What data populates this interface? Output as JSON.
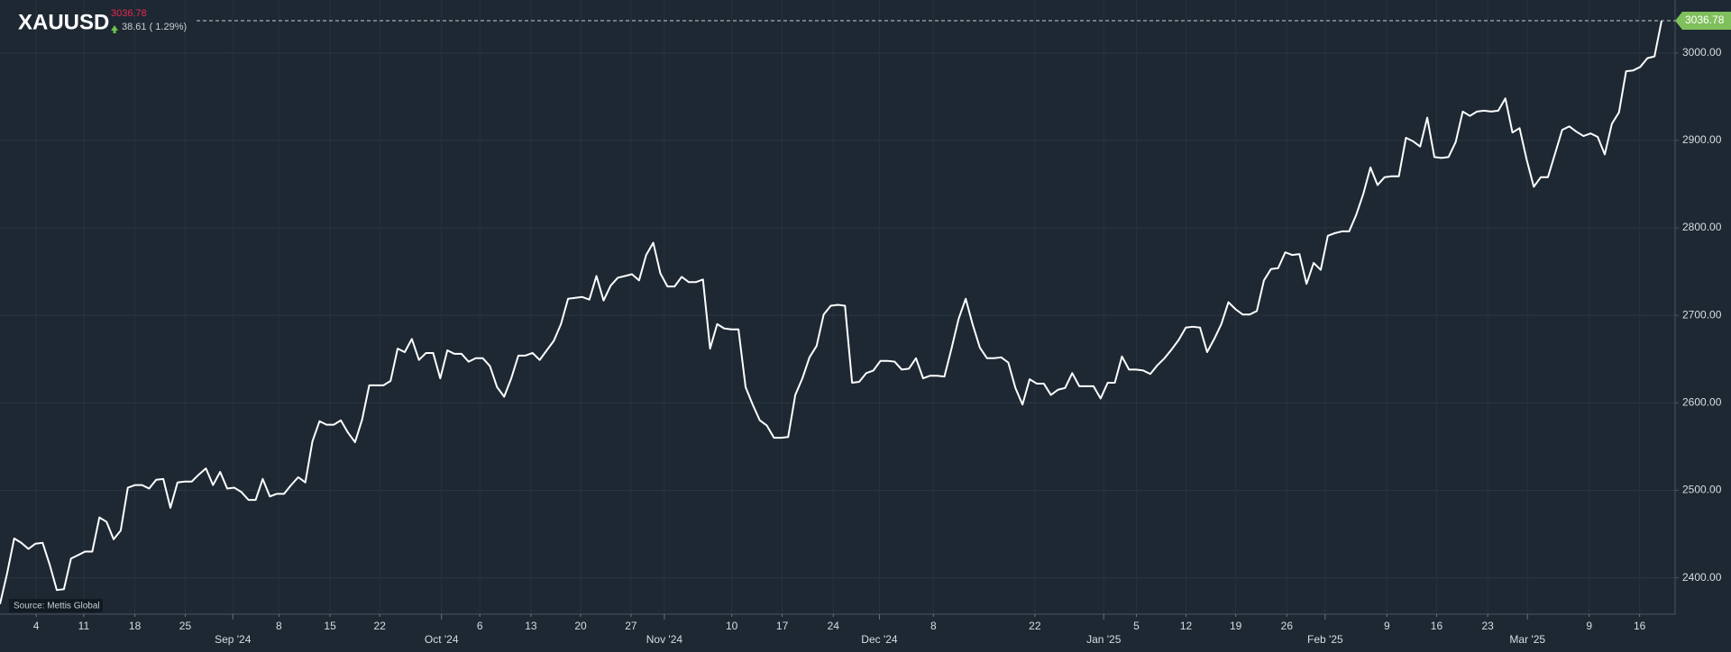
{
  "chart_data": {
    "type": "line",
    "title": "XAUUSD",
    "last_price": "3036.78",
    "change": "38.61 ( 1.29%)",
    "source": "Source: Mettis Global",
    "series": [
      {
        "name": "XAUUSD",
        "color": "#ffffff",
        "values": [
          2370,
          2405,
          2445,
          2440,
          2433,
          2439,
          2440,
          2415,
          2386,
          2387,
          2422,
          2426,
          2430,
          2430,
          2469,
          2464,
          2444,
          2454,
          2503,
          2506,
          2506,
          2502,
          2512,
          2513,
          2480,
          2509,
          2510,
          2510,
          2518,
          2525,
          2506,
          2521,
          2502,
          2503,
          2498,
          2489,
          2489,
          2513,
          2493,
          2496,
          2496,
          2506,
          2515,
          2509,
          2556,
          2579,
          2575,
          2575,
          2580,
          2566,
          2555,
          2581,
          2620,
          2620,
          2620,
          2625,
          2662,
          2658,
          2673,
          2649,
          2657,
          2657,
          2628,
          2660,
          2656,
          2656,
          2647,
          2651,
          2651,
          2642,
          2618,
          2607,
          2628,
          2654,
          2654,
          2657,
          2649,
          2660,
          2671,
          2690,
          2719,
          2720,
          2721,
          2718,
          2745,
          2717,
          2734,
          2743,
          2745,
          2747,
          2740,
          2769,
          2783,
          2748,
          2733,
          2733,
          2744,
          2738,
          2738,
          2741,
          2662,
          2690,
          2685,
          2684,
          2684,
          2618,
          2598,
          2580,
          2574,
          2560,
          2560,
          2561,
          2609,
          2628,
          2652,
          2665,
          2701,
          2711,
          2712,
          2711,
          2623,
          2624,
          2634,
          2637,
          2648,
          2648,
          2647,
          2638,
          2639,
          2651,
          2628,
          2631,
          2631,
          2630,
          2662,
          2696,
          2719,
          2689,
          2663,
          2651,
          2651,
          2652,
          2646,
          2617,
          2598,
          2627,
          2622,
          2622,
          2609,
          2615,
          2617,
          2634,
          2619,
          2619,
          2619,
          2605,
          2623,
          2623,
          2653,
          2638,
          2638,
          2637,
          2633,
          2643,
          2651,
          2661,
          2672,
          2686,
          2687,
          2686,
          2658,
          2673,
          2690,
          2715,
          2707,
          2701,
          2701,
          2705,
          2740,
          2753,
          2754,
          2772,
          2769,
          2770,
          2736,
          2760,
          2752,
          2791,
          2794,
          2796,
          2796,
          2815,
          2839,
          2869,
          2849,
          2858,
          2859,
          2859,
          2903,
          2899,
          2893,
          2926,
          2881,
          2880,
          2881,
          2898,
          2933,
          2928,
          2933,
          2934,
          2933,
          2934,
          2948,
          2909,
          2914,
          2878,
          2847,
          2858,
          2858,
          2885,
          2912,
          2916,
          2910,
          2905,
          2908,
          2904,
          2884,
          2919,
          2932,
          2979,
          2980,
          2984,
          2994,
          2996,
          3036.78
        ]
      }
    ],
    "xlim": [
      0,
      236
    ],
    "xticks": [
      {
        "value": 5.1,
        "label": "4"
      },
      {
        "value": 11.8,
        "label": "11"
      },
      {
        "value": 19.0,
        "label": "18"
      },
      {
        "value": 26.1,
        "label": "25"
      },
      {
        "value": 32.8,
        "label": "Sep '24"
      },
      {
        "value": 39.3,
        "label": "8"
      },
      {
        "value": 46.5,
        "label": "15"
      },
      {
        "value": 53.5,
        "label": "22"
      },
      {
        "value": 62.2,
        "label": "Oct '24"
      },
      {
        "value": 67.6,
        "label": "6"
      },
      {
        "value": 74.8,
        "label": "13"
      },
      {
        "value": 81.8,
        "label": "20"
      },
      {
        "value": 88.9,
        "label": "27"
      },
      {
        "value": 93.6,
        "label": "Nov '24"
      },
      {
        "value": 103.1,
        "label": "10"
      },
      {
        "value": 110.2,
        "label": "17"
      },
      {
        "value": 117.4,
        "label": "24"
      },
      {
        "value": 123.9,
        "label": "Dec '24"
      },
      {
        "value": 131.5,
        "label": "8"
      },
      {
        "value": 145.8,
        "label": "22"
      },
      {
        "value": 155.5,
        "label": "Jan '25"
      },
      {
        "value": 160.1,
        "label": "5"
      },
      {
        "value": 167.1,
        "label": "12"
      },
      {
        "value": 174.1,
        "label": "19"
      },
      {
        "value": 181.3,
        "label": "26"
      },
      {
        "value": 186.7,
        "label": "Feb '25"
      },
      {
        "value": 195.4,
        "label": "9"
      },
      {
        "value": 202.4,
        "label": "16"
      },
      {
        "value": 209.6,
        "label": "23"
      },
      {
        "value": 215.2,
        "label": "Mar '25"
      },
      {
        "value": 223.9,
        "label": "9"
      },
      {
        "value": 231.0,
        "label": "16"
      }
    ],
    "ylim": [
      2358.4,
      3060.5
    ],
    "yticks": [
      {
        "value": 2400,
        "label": "2400.00"
      },
      {
        "value": 2500,
        "label": "2500.00"
      },
      {
        "value": 2600,
        "label": "2600.00"
      },
      {
        "value": 2700,
        "label": "2700.00"
      },
      {
        "value": 2800,
        "label": "2800.00"
      },
      {
        "value": 2900,
        "label": "2900.00"
      },
      {
        "value": 3000,
        "label": "3000.00"
      }
    ],
    "grid": true
  }
}
